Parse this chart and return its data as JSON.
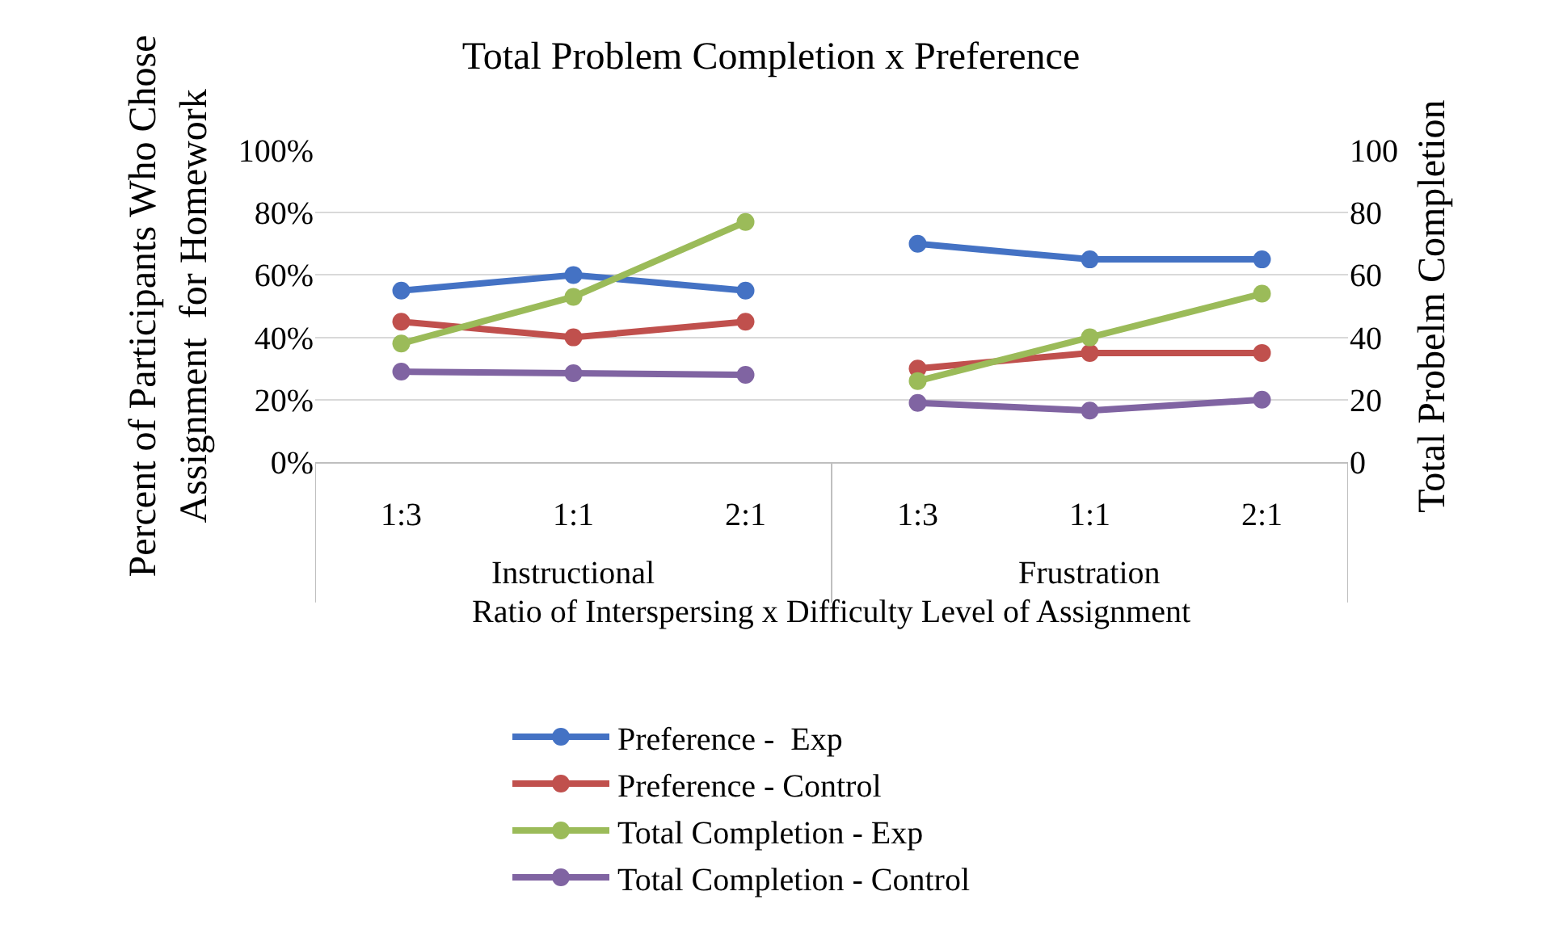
{
  "chart_data": {
    "type": "line",
    "title": "Total Problem Completion x Preference",
    "xlabel": "Ratio of Interspersing x Difficulty Level of Assignment",
    "ylabel": "Percent of Participants Who Chose\nAssignment  for Homework",
    "y2label": "Total Probelm Completion",
    "categories": [
      "1:3",
      "1:1",
      "2:1",
      "1:3",
      "1:1",
      "2:1"
    ],
    "annotations": [
      "Instructional",
      "Frustration"
    ],
    "series": [
      {
        "name": "Preference -  Exp",
        "color": "#4472c4",
        "values": [
          55,
          60,
          55,
          70,
          65,
          65
        ]
      },
      {
        "name": "Preference - Control",
        "color": "#c0504d",
        "values": [
          45,
          40,
          45,
          30,
          35,
          35
        ]
      },
      {
        "name": "Total Completion - Exp",
        "color": "#9bbb59",
        "axis": "y2",
        "values": [
          38,
          53,
          77,
          26,
          40,
          54
        ]
      },
      {
        "name": "Total Completion - Control",
        "color": "#8064a2",
        "axis": "y2",
        "values": [
          29,
          28.5,
          28,
          19,
          16.5,
          20
        ]
      }
    ],
    "ylim": [
      0,
      100
    ],
    "yticks": [
      {
        "value": 0,
        "label": "0%"
      },
      {
        "value": 20,
        "label": "20%"
      },
      {
        "value": 40,
        "label": "40%"
      },
      {
        "value": 60,
        "label": "60%"
      },
      {
        "value": 80,
        "label": "80%"
      },
      {
        "value": 100,
        "label": "100%"
      }
    ],
    "y2lim": [
      0,
      100
    ],
    "y2ticks": [
      0,
      20,
      40,
      60,
      80,
      100
    ],
    "grid": "y",
    "legend": "bottom",
    "marker": "circle",
    "line_style": "solid"
  }
}
